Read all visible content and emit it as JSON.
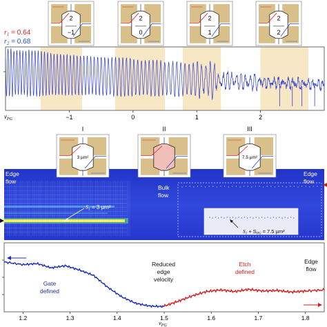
{
  "colors": {
    "gate_gold": "#d9c08a",
    "band_shade": "#f8e7c4",
    "trace_blue": "#2d3fd0",
    "line_blue": "#1b2fb5",
    "line_red": "#d42020",
    "heatmap_bg": "#2a3fd6",
    "inset_bg": "#e9ebf7",
    "r1_color": "#e02020",
    "r2_color": "#2050c8"
  },
  "top_panel": {
    "r1_label": "r",
    "r1_sub": "1",
    "r1_value": " = 0.64",
    "r2_label": "r",
    "r2_sub": "2",
    "r2_value": " = 0.68",
    "axis_var": "ν",
    "axis_sub": "PG",
    "ticks": [
      "−1",
      "0",
      "1",
      "2"
    ],
    "schematics": [
      {
        "upper": "2",
        "lower": "−1"
      },
      {
        "upper": "2",
        "lower": "0"
      },
      {
        "upper": "2",
        "lower": "1"
      },
      {
        "upper": "2",
        "lower": "2"
      }
    ]
  },
  "middle_panel": {
    "roman": [
      "I",
      "II",
      "III"
    ],
    "schematic_labels": [
      "3 µm²",
      "",
      "7.5 µm²"
    ],
    "edge_flow_left": [
      "Edge",
      "flow"
    ],
    "bulk_flow": [
      "Bulk",
      "flow"
    ],
    "edge_flow_right": [
      "Edge",
      "flow"
    ],
    "s1_label": "S",
    "s1_sub": "1",
    "s1_value": " = 3 µm²",
    "s2_label": "S",
    "s2_sub": "1",
    "s2_mid": " + S",
    "s2_sub2": "PG",
    "s2_value": " = 7.5 µm²"
  },
  "bottom_panel": {
    "gate_label": [
      "Gate",
      "defined"
    ],
    "reduced_label": [
      "Reduced",
      "edge",
      "velocity"
    ],
    "etch_label": [
      "Etch",
      "defined"
    ],
    "edge_flow": [
      "Edge",
      "flow"
    ],
    "axis_var": "ν",
    "axis_sub": "PG",
    "ticks": [
      "1.2",
      "1.3",
      "1.4",
      "1.5",
      "1.6",
      "1.7",
      "1.8"
    ]
  },
  "chart_data": [
    {
      "type": "line",
      "panel": "top",
      "x_range": [
        -2.0,
        3.0
      ],
      "shaded_intervals": [
        [
          -1.45,
          -0.8
        ],
        [
          -0.28,
          0.5
        ],
        [
          0.78,
          1.38
        ],
        [
          2.0,
          2.75
        ]
      ],
      "trace": "oscillating interference signal; amplitude decays toward higher ν_PG"
    },
    {
      "type": "heatmap",
      "panel": "middle",
      "description": "edge-flow oscillation stripes (bright yellow/green band on left), bulk flow region, edge-flow region with inset"
    },
    {
      "type": "line",
      "panel": "bottom",
      "xlabel": "ν_PG",
      "xlim": [
        1.16,
        1.84
      ],
      "series": [
        {
          "name": "Gate defined",
          "color": "#1b2fb5",
          "x": [
            1.16,
            1.2,
            1.23,
            1.26,
            1.29,
            1.32,
            1.35,
            1.38,
            1.41,
            1.44,
            1.47,
            1.5
          ],
          "y": [
            0.85,
            0.8,
            0.82,
            0.74,
            0.78,
            0.7,
            0.6,
            0.38,
            0.2,
            0.08,
            0.03,
            0.02
          ]
        },
        {
          "name": "Etch defined",
          "color": "#d42020",
          "x": [
            1.5,
            1.53,
            1.56,
            1.59,
            1.62,
            1.65,
            1.68,
            1.71,
            1.74,
            1.77,
            1.8,
            1.84
          ],
          "y": [
            0.03,
            0.12,
            0.22,
            0.3,
            0.33,
            0.3,
            0.34,
            0.31,
            0.32,
            0.29,
            0.31,
            0.33
          ]
        }
      ]
    }
  ]
}
